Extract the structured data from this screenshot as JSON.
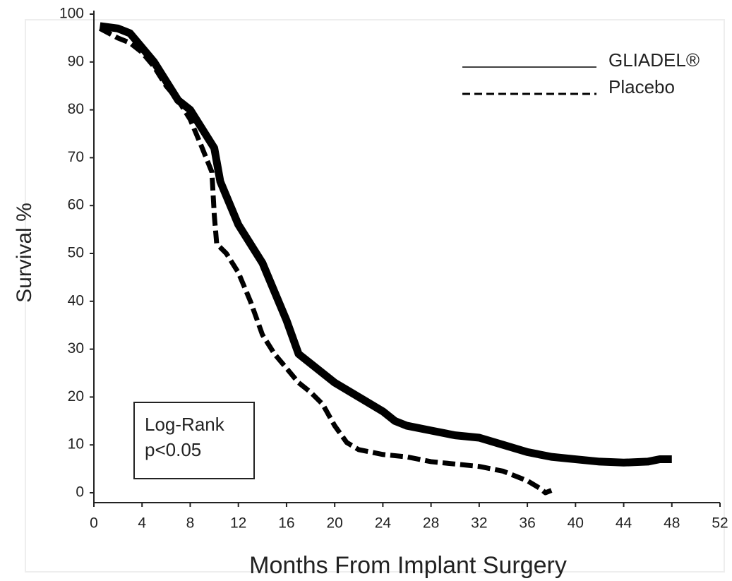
{
  "chart_data": {
    "type": "line",
    "xlabel": "Months From Implant Surgery",
    "ylabel": "Survival %",
    "xlim": [
      0,
      52
    ],
    "ylim": [
      0,
      100
    ],
    "xticks": [
      0,
      4,
      8,
      12,
      16,
      20,
      24,
      28,
      32,
      36,
      40,
      44,
      48,
      52
    ],
    "yticks": [
      0,
      10,
      20,
      30,
      40,
      50,
      60,
      70,
      80,
      90,
      100
    ],
    "legend": "upper right",
    "annotation": [
      "Log-Rank",
      "p<0.05"
    ],
    "series": [
      {
        "name": "GLIADEL®",
        "color": "#000000",
        "line_style": "solid",
        "x": [
          0.5,
          2,
          3,
          4,
          5,
          6,
          7,
          8,
          9,
          10,
          10.5,
          11,
          12,
          13,
          14,
          15,
          16,
          17,
          18,
          20,
          22,
          24,
          25,
          26,
          28,
          30,
          32,
          34,
          36,
          38,
          40,
          42,
          44,
          46,
          47,
          48
        ],
        "values": [
          97.5,
          97,
          96,
          93,
          90,
          86,
          82,
          80,
          76,
          72,
          65,
          62,
          56,
          52,
          48,
          42,
          36,
          29,
          27,
          23,
          20,
          17,
          15,
          14,
          13,
          12,
          11.5,
          10,
          8.5,
          7.5,
          7,
          6.5,
          6.3,
          6.5,
          7,
          7
        ]
      },
      {
        "name": "Placebo",
        "color": "#000000",
        "line_style": "dashed",
        "x": [
          0.5,
          2,
          3,
          4,
          5,
          6,
          7,
          8,
          9,
          9.8,
          10,
          10.2,
          11,
          12,
          13,
          14,
          15,
          16,
          17,
          18,
          19,
          20,
          21,
          22,
          24,
          26,
          28,
          30,
          32,
          34,
          36,
          37,
          37.5,
          38
        ],
        "values": [
          97,
          95,
          94,
          92,
          89,
          85,
          82,
          78,
          72,
          67,
          58,
          52,
          50,
          46,
          40,
          33,
          29,
          26,
          23,
          21,
          18.5,
          14,
          10.5,
          9,
          8,
          7.5,
          6.5,
          6,
          5.5,
          4.5,
          2.5,
          1,
          0,
          0.5
        ]
      }
    ]
  }
}
